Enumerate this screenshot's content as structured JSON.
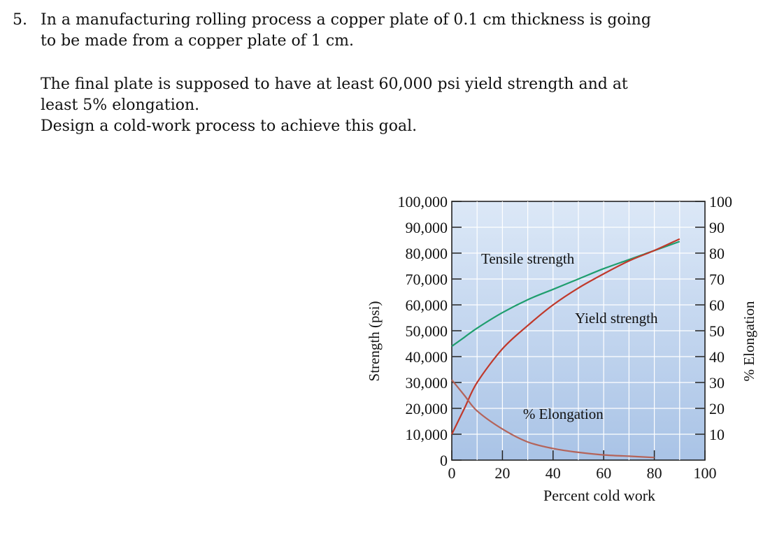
{
  "problem": {
    "number": "5.",
    "line1": "In a manufacturing rolling process a copper plate of 0.1 cm thickness is going",
    "line2": "to be made from a copper plate of 1 cm.",
    "line3": "The final plate is supposed to have at least 60,000 psi yield strength and at",
    "line4": "least 5% elongation.",
    "line5": "Design a cold-work process to achieve this goal."
  },
  "chart_data": {
    "type": "line",
    "xlabel": "Percent cold work",
    "ylabel_left": "Strength (psi)",
    "ylabel_right": "% Elongation",
    "xlim": [
      0,
      100
    ],
    "ylim_left": [
      0,
      100000
    ],
    "ylim_right": [
      0,
      100
    ],
    "x_ticks": [
      "0",
      "20",
      "40",
      "60",
      "80",
      "100"
    ],
    "y_ticks_left": [
      "0",
      "10,000",
      "20,000",
      "30,000",
      "40,000",
      "50,000",
      "60,000",
      "70,000",
      "80,000",
      "90,000",
      "100,000"
    ],
    "y_ticks_right": [
      "10",
      "20",
      "30",
      "40",
      "50",
      "60",
      "70",
      "80",
      "90",
      "100"
    ],
    "grid": true,
    "series": [
      {
        "name": "Tensile strength",
        "axis": "left",
        "color": "#1f9e6e",
        "x": [
          0,
          5,
          10,
          20,
          30,
          40,
          50,
          60,
          70,
          80,
          90
        ],
        "y": [
          44000,
          47500,
          51000,
          57000,
          62000,
          66000,
          70000,
          74000,
          77500,
          81000,
          84500
        ]
      },
      {
        "name": "Yield strength",
        "axis": "left",
        "color": "#c0392b",
        "x": [
          0,
          5,
          10,
          20,
          30,
          40,
          50,
          60,
          70,
          80,
          90
        ],
        "y": [
          10000,
          20000,
          30000,
          43000,
          52000,
          60000,
          66500,
          72000,
          77000,
          81000,
          85500
        ]
      },
      {
        "name": "% Elongation",
        "axis": "right",
        "color": "#b4645a",
        "x": [
          0,
          5,
          10,
          20,
          30,
          40,
          50,
          60,
          70,
          80
        ],
        "y": [
          31,
          25,
          19,
          12,
          7,
          4.5,
          3,
          2,
          1.5,
          1
        ]
      }
    ],
    "annotations": [
      {
        "text": "Tensile strength",
        "x": 30,
        "y": 76000
      },
      {
        "text": "Yield strength",
        "x": 65,
        "y": 53000
      },
      {
        "text": "% Elongation",
        "x": 44,
        "y": 16000
      }
    ]
  }
}
